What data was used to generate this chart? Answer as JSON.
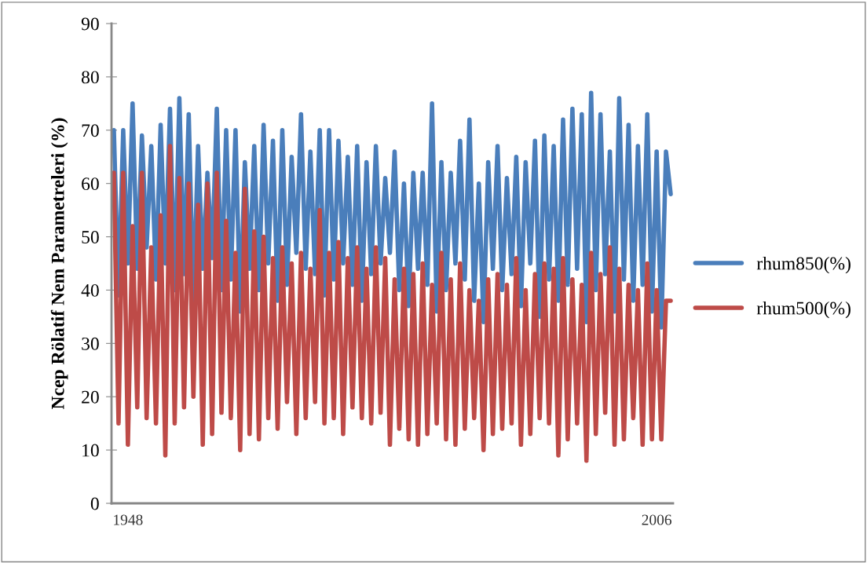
{
  "chart_data": {
    "type": "line",
    "ylabel": "Ncep Rölatif Nem Parametreleri (%)",
    "categories": [
      null,
      null,
      null,
      "1948",
      null,
      null,
      null,
      null,
      null,
      null,
      null,
      null,
      null,
      null,
      null,
      null,
      null,
      null,
      null,
      null,
      null,
      null,
      null,
      null,
      null,
      null,
      null,
      null,
      null,
      null,
      null,
      null,
      null,
      null,
      null,
      null,
      null,
      null,
      null,
      null,
      null,
      null,
      null,
      null,
      null,
      null,
      null,
      null,
      null,
      null,
      null,
      null,
      null,
      null,
      null,
      null,
      null,
      null,
      null,
      null,
      null,
      null,
      null,
      null,
      null,
      null,
      null,
      null,
      null,
      null,
      null,
      null,
      null,
      null,
      null,
      null,
      null,
      null,
      null,
      null,
      null,
      null,
      null,
      null,
      null,
      null,
      null,
      null,
      null,
      null,
      null,
      null,
      null,
      null,
      null,
      null,
      null,
      null,
      null,
      null,
      null,
      null,
      null,
      null,
      null,
      null,
      null,
      null,
      null,
      null,
      null,
      null,
      null,
      null,
      null,
      null,
      "2006",
      null,
      null,
      null
    ],
    "series": [
      {
        "name": "rhum850(%)",
        "color": "#4a7ebb",
        "values": [
          70,
          39,
          70,
          45,
          75,
          44,
          69,
          48,
          67,
          42,
          71,
          45,
          74,
          40,
          76,
          43,
          73,
          38,
          67,
          44,
          62,
          46,
          74,
          40,
          70,
          42,
          70,
          36,
          64,
          44,
          67,
          40,
          71,
          45,
          68,
          38,
          70,
          41,
          65,
          47,
          73,
          44,
          66,
          43,
          70,
          39,
          70,
          42,
          68,
          45,
          65,
          41,
          67,
          38,
          64,
          43,
          67,
          45,
          61,
          47,
          66,
          40,
          60,
          37,
          62,
          44,
          62,
          41,
          75,
          36,
          64,
          40,
          62,
          45,
          68,
          42,
          72,
          38,
          60,
          34,
          64,
          44,
          67,
          40,
          61,
          43,
          65,
          37,
          64,
          45,
          68,
          35,
          69,
          42,
          67,
          38,
          72,
          41,
          74,
          44,
          73,
          34,
          77,
          40,
          73,
          43,
          66,
          36,
          76,
          42,
          71,
          38,
          67,
          41,
          73,
          36,
          66,
          33,
          66,
          58
        ]
      },
      {
        "name": "rhum500(%)",
        "color": "#be4b48",
        "values": [
          62,
          15,
          62,
          11,
          52,
          18,
          62,
          16,
          48,
          15,
          54,
          9,
          67,
          15,
          61,
          18,
          60,
          20,
          56,
          11,
          60,
          13,
          62,
          17,
          53,
          16,
          47,
          10,
          59,
          13,
          51,
          12,
          50,
          16,
          46,
          14,
          48,
          19,
          45,
          13,
          47,
          16,
          44,
          19,
          55,
          15,
          47,
          16,
          49,
          13,
          46,
          18,
          48,
          16,
          44,
          15,
          48,
          17,
          46,
          11,
          42,
          14,
          44,
          12,
          43,
          11,
          45,
          13,
          41,
          15,
          47,
          12,
          42,
          11,
          45,
          14,
          40,
          16,
          38,
          10,
          42,
          13,
          43,
          14,
          41,
          15,
          46,
          11,
          40,
          13,
          43,
          16,
          45,
          15,
          44,
          9,
          46,
          12,
          42,
          15,
          41,
          8,
          47,
          13,
          43,
          17,
          48,
          11,
          44,
          12,
          41,
          16,
          40,
          11,
          45,
          12,
          40,
          12,
          38,
          38
        ]
      }
    ],
    "ylim": [
      0,
      90
    ],
    "yticks": [
      0,
      10,
      20,
      30,
      40,
      50,
      60,
      70,
      80,
      90
    ],
    "grid": false,
    "legend": "right"
  }
}
